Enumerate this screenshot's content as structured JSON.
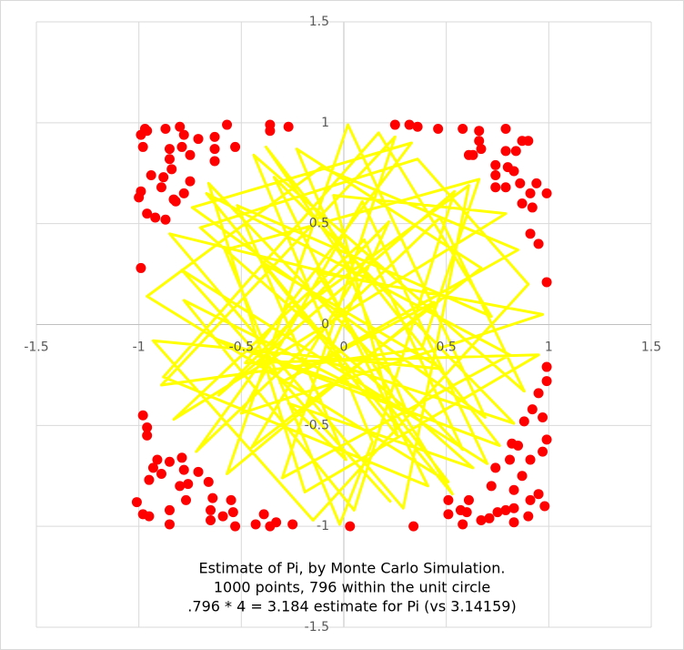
{
  "chart_data": {
    "type": "scatter",
    "annotation": [
      "Estimate of Pi, by Monte Carlo Simulation.",
      "1000 points, 796 within the unit circle",
      ".796 * 4 = 3.184 estimate for Pi (vs 3.14159)"
    ],
    "xlim": [
      -1.5,
      1.5
    ],
    "ylim": [
      -1.5,
      1.5
    ],
    "xticks": [
      -1.5,
      -1,
      -0.5,
      0,
      0.5,
      1,
      1.5
    ],
    "yticks": [
      -1.5,
      -1,
      -0.5,
      0,
      0.5,
      1,
      1.5
    ],
    "grid": true,
    "series": [
      {
        "color": "#ffff00",
        "style": "line",
        "x": [
          0.12,
          -0.45,
          0.67,
          -0.23,
          0.31,
          -0.78,
          0.05,
          0.54,
          -0.61,
          0.22,
          -0.09,
          0.83,
          -0.34,
          0.41,
          -0.88,
          0.17,
          0.72,
          -0.52,
          0.01,
          -0.27,
          0.63,
          -0.7,
          0.36,
          0.9,
          -0.15,
          -0.93,
          0.48,
          -0.4,
          0.26,
          -0.05,
          0.79,
          -0.83,
          0.1,
          0.58,
          -0.66,
          -0.19,
          0.95,
          -0.48,
          0.33,
          -0.74,
          0.69,
          0.02,
          -0.57,
          0.44,
          -0.31,
          0.85,
          -0.11,
          -0.96,
          0.51,
          0.19,
          -0.63,
          0.76,
          -0.38,
          0.07,
          -0.85,
          0.29,
          0.61,
          -0.22,
          -0.72,
          0.47,
          0.88,
          -0.44,
          0.14,
          -0.02,
          -0.58,
          0.66,
          0.38,
          -0.89,
          0.25,
          -0.3,
          0.81,
          -0.67,
          0.53,
          -0.13,
          0.97,
          -0.5,
          0.09,
          0.7,
          -0.79,
          0.23
        ],
        "values": [
          0.34,
          -0.61,
          0.28,
          0.87,
          -0.44,
          0.12,
          -0.92,
          0.66,
          -0.35,
          0.51,
          -0.18,
          -0.49,
          0.73,
          -0.8,
          -0.26,
          0.95,
          0.04,
          0.59,
          -0.67,
          -0.39,
          -0.71,
          0.48,
          0.82,
          0.2,
          -0.97,
          -0.08,
          -0.22,
          0.31,
          -0.55,
          0.64,
          0.55,
          -0.47,
          0.42,
          -0.62,
          0.7,
          -0.83,
          -0.15,
          -0.19,
          0.9,
          0.58,
          -0.46,
          0.99,
          -0.74,
          0.11,
          -0.29,
          0.37,
          0.78,
          0.14,
          -0.78,
          -0.36,
          -0.07,
          -0.6,
          0.88,
          0.22,
          0.45,
          -0.91,
          0.69,
          0.07,
          -0.63,
          0.53,
          -0.33,
          0.84,
          -0.58,
          -0.99,
          0.37,
          0.72,
          -0.12,
          -0.3,
          0.93,
          -0.76,
          -0.15,
          0.65,
          -0.84,
          0.26,
          0.05,
          -0.44,
          0.61,
          -0.69,
          0.27,
          -0.88
        ]
      },
      {
        "color": "#ff0000",
        "style": "markers",
        "x": [
          -0.99,
          -0.97,
          -0.96,
          -0.87,
          -0.8,
          -0.78,
          -0.71,
          -0.63,
          -0.57,
          -0.53,
          -0.63,
          -0.98,
          -0.85,
          -0.79,
          -0.75,
          -0.85,
          -0.84,
          -0.94,
          -0.88,
          -0.75,
          -0.89,
          -0.99,
          -1.0,
          -0.96,
          -0.92,
          -0.87,
          -0.83,
          -0.78,
          -0.99,
          -0.63,
          -0.36,
          -0.27,
          -0.36,
          -0.82,
          0.25,
          0.32,
          0.36,
          0.46,
          0.58,
          0.66,
          0.79,
          0.66,
          0.67,
          0.63,
          0.79,
          0.84,
          0.87,
          0.9,
          0.74,
          0.8,
          0.74,
          0.83,
          0.74,
          0.79,
          0.86,
          0.94,
          0.91,
          0.99,
          0.87,
          0.92,
          0.91,
          0.95,
          0.99,
          0.61,
          -1.01,
          -0.98,
          -0.95,
          -0.85,
          -0.85,
          -0.98,
          -0.96,
          -0.96,
          -0.91,
          -0.93,
          -0.89,
          -0.85,
          -0.79,
          -0.78,
          -0.71,
          -0.76,
          -0.95,
          -0.77,
          -0.66,
          -0.64,
          -0.65,
          -0.65,
          -0.59,
          -0.55,
          -0.54,
          -0.53,
          -0.43,
          -0.39,
          -0.36,
          -0.33,
          -0.25,
          -0.8,
          0.03,
          0.34,
          0.51,
          0.51,
          0.57,
          0.58,
          0.61,
          0.6,
          0.67,
          0.71,
          0.75,
          0.79,
          0.83,
          0.83,
          0.9,
          0.91,
          0.98,
          0.95,
          0.87,
          0.74,
          0.81,
          0.91,
          0.97,
          0.99,
          0.82,
          0.85,
          0.88,
          0.92,
          0.95,
          0.97,
          0.99,
          0.99,
          0.72,
          0.83
        ],
        "values": [
          0.94,
          0.97,
          0.96,
          0.97,
          0.98,
          0.94,
          0.92,
          0.93,
          0.99,
          0.88,
          0.87,
          0.88,
          0.87,
          0.88,
          0.84,
          0.82,
          0.77,
          0.74,
          0.73,
          0.71,
          0.68,
          0.66,
          0.63,
          0.55,
          0.53,
          0.52,
          0.62,
          0.65,
          0.28,
          0.81,
          0.99,
          0.98,
          0.96,
          0.61,
          0.99,
          0.99,
          0.98,
          0.97,
          0.97,
          0.96,
          0.97,
          0.91,
          0.87,
          0.84,
          0.86,
          0.86,
          0.91,
          0.91,
          0.79,
          0.78,
          0.74,
          0.76,
          0.68,
          0.68,
          0.7,
          0.7,
          0.65,
          0.65,
          0.6,
          0.58,
          0.45,
          0.4,
          0.21,
          0.84,
          -0.88,
          -0.94,
          -0.95,
          -0.92,
          -0.99,
          -0.45,
          -0.51,
          -0.55,
          -0.67,
          -0.71,
          -0.74,
          -0.68,
          -0.66,
          -0.72,
          -0.73,
          -0.79,
          -0.77,
          -0.87,
          -0.78,
          -0.86,
          -0.92,
          -0.97,
          -0.95,
          -0.87,
          -0.93,
          -1.0,
          -0.99,
          -0.94,
          -1.0,
          -0.98,
          -0.99,
          -0.8,
          -1.0,
          -1.0,
          -0.87,
          -0.94,
          -0.92,
          -0.99,
          -0.87,
          -0.93,
          -0.97,
          -0.96,
          -0.93,
          -0.92,
          -0.91,
          -0.98,
          -0.95,
          -0.87,
          -0.9,
          -0.84,
          -0.75,
          -0.71,
          -0.67,
          -0.67,
          -0.63,
          -0.57,
          -0.59,
          -0.6,
          -0.48,
          -0.42,
          -0.34,
          -0.46,
          -0.21,
          -0.28,
          -0.8,
          -0.82
        ]
      }
    ]
  }
}
